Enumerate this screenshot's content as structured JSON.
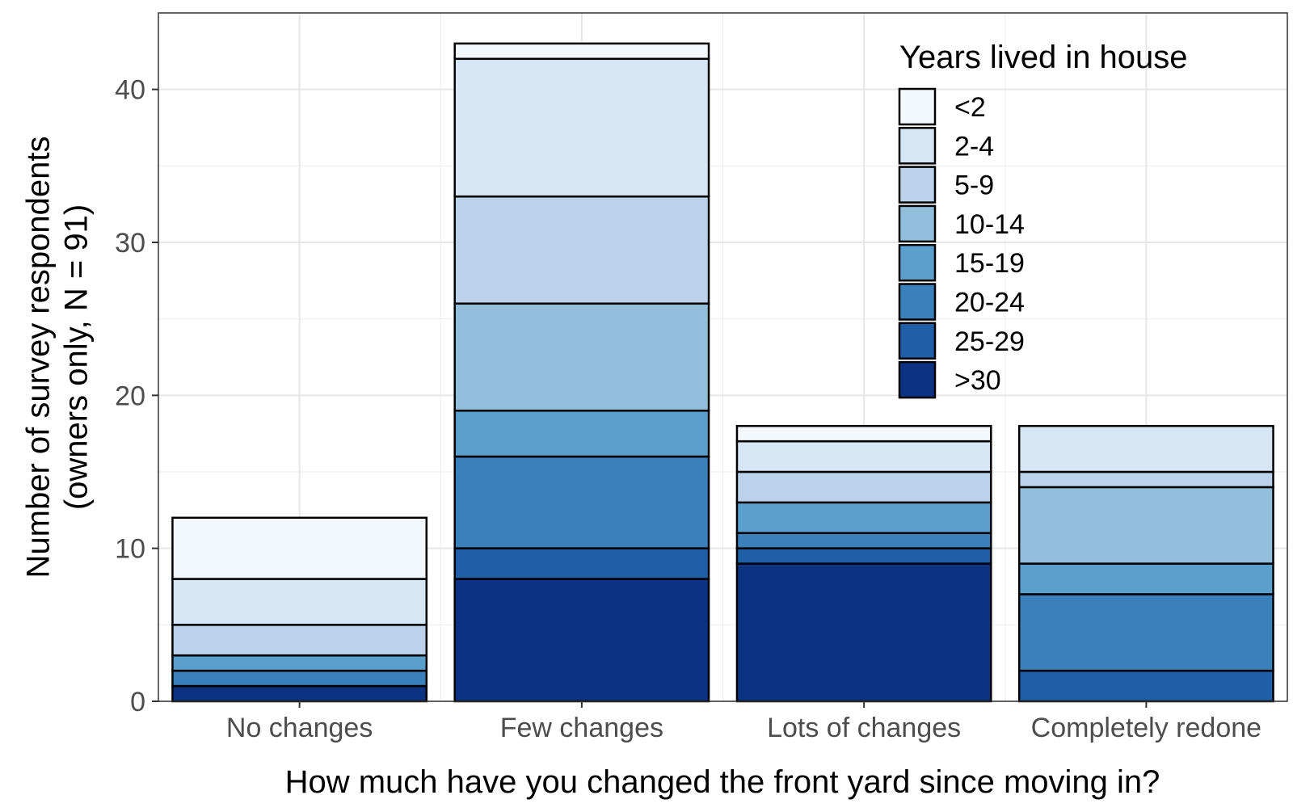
{
  "chart_data": {
    "type": "bar",
    "stacked": true,
    "xlabel": "How much have you changed the front yard since moving in?",
    "ylabel_lines": [
      "Number of survey respondents",
      "(owners only, N = 91)"
    ],
    "ylim": [
      0,
      45
    ],
    "yticks": [
      "0",
      "10",
      "20",
      "30",
      "40"
    ],
    "grid": true,
    "legend": {
      "title": "Years lived in house",
      "placement": "top-right"
    },
    "categories": [
      "No changes",
      "Few changes",
      "Lots of changes",
      "Completely redone"
    ],
    "series": [
      {
        "name": ">30",
        "color": "#0c3381",
        "values": [
          1,
          8,
          9,
          0
        ]
      },
      {
        "name": "25-29",
        "color": "#1f5fa8",
        "values": [
          0,
          2,
          1,
          2
        ]
      },
      {
        "name": "20-24",
        "color": "#3a80bb",
        "values": [
          1,
          6,
          1,
          5
        ]
      },
      {
        "name": "15-19",
        "color": "#5ba0cd",
        "values": [
          1,
          3,
          2,
          2
        ]
      },
      {
        "name": "10-14",
        "color": "#91bedb",
        "values": [
          0,
          7,
          0,
          5
        ]
      },
      {
        "name": "5-9",
        "color": "#bcd2eb",
        "values": [
          2,
          7,
          2,
          1
        ]
      },
      {
        "name": "2-4",
        "color": "#d6e6f5",
        "values": [
          3,
          9,
          2,
          3
        ]
      },
      {
        "name": "<2",
        "color": "#f3f8fd",
        "values": [
          4,
          1,
          1,
          0
        ]
      }
    ]
  }
}
